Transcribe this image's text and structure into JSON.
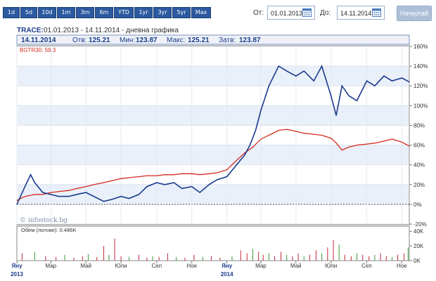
{
  "toolbar": {
    "ranges": [
      "1d",
      "5d",
      "10d",
      "1m",
      "3m",
      "6m",
      "YTD",
      "1yr",
      "3yr",
      "5yr",
      "Max"
    ],
    "from_label": "От:",
    "from_value": "01.01.2013",
    "to_label": "До:",
    "to_value": "14.11.2014",
    "draw_button": "Начертай"
  },
  "header": {
    "ticker": "TRACE:",
    "subtitle": "01.01.2013 - 14.11.2014 - дневна графика",
    "date": "14.11.2014",
    "open_label": "Отв:",
    "open": "125.21",
    "min_label": "Мин:",
    "min": "123.87",
    "max_label": "Макс:",
    "max": "125.21",
    "close_label": "Затв:",
    "close": "123.87"
  },
  "index_label": "BGTR30: 59.3",
  "watermark": "© infostock.bg",
  "volume_label": "Обем (лотове): 0.486K",
  "colors": {
    "price": "#1a3a8c",
    "index": "#d42a1c",
    "grid_band": "#eaf0fa",
    "volume_up": "#3a9a3a",
    "volume_down": "#c4283a"
  },
  "chart_data": [
    {
      "type": "line",
      "series": [
        {
          "name": "TRACE",
          "x": [
            "2013-01-01",
            "2013-01-15",
            "2013-01-25",
            "2013-02-01",
            "2013-02-15",
            "2013-03-01",
            "2013-03-15",
            "2013-04-01",
            "2013-04-15",
            "2013-05-01",
            "2013-05-15",
            "2013-06-01",
            "2013-06-15",
            "2013-07-01",
            "2013-07-15",
            "2013-08-01",
            "2013-08-15",
            "2013-09-01",
            "2013-09-15",
            "2013-10-01",
            "2013-10-15",
            "2013-11-01",
            "2013-11-15",
            "2013-12-01",
            "2013-12-15",
            "2014-01-01",
            "2014-01-15",
            "2014-02-01",
            "2014-02-10",
            "2014-02-20",
            "2014-03-01",
            "2014-03-15",
            "2014-04-01",
            "2014-04-15",
            "2014-05-01",
            "2014-05-15",
            "2014-06-01",
            "2014-06-15",
            "2014-07-01",
            "2014-07-10",
            "2014-07-20",
            "2014-08-01",
            "2014-08-15",
            "2014-09-01",
            "2014-09-15",
            "2014-10-01",
            "2014-10-15",
            "2014-11-01",
            "2014-11-14"
          ],
          "values": [
            0,
            18,
            30,
            22,
            12,
            10,
            8,
            8,
            10,
            12,
            8,
            3,
            5,
            8,
            6,
            10,
            18,
            22,
            20,
            22,
            16,
            18,
            12,
            20,
            25,
            28,
            38,
            50,
            60,
            75,
            95,
            120,
            140,
            135,
            130,
            135,
            125,
            140,
            110,
            90,
            120,
            110,
            105,
            125,
            120,
            130,
            125,
            128,
            124
          ]
        },
        {
          "name": "BGTR30",
          "x": [
            "2013-01-01",
            "2013-01-15",
            "2013-02-01",
            "2013-02-15",
            "2013-03-01",
            "2013-03-15",
            "2013-04-01",
            "2013-04-15",
            "2013-05-01",
            "2013-05-15",
            "2013-06-01",
            "2013-06-15",
            "2013-07-01",
            "2013-07-15",
            "2013-08-01",
            "2013-08-15",
            "2013-09-01",
            "2013-09-15",
            "2013-10-01",
            "2013-10-15",
            "2013-11-01",
            "2013-11-15",
            "2013-12-01",
            "2013-12-15",
            "2014-01-01",
            "2014-01-15",
            "2014-02-01",
            "2014-02-15",
            "2014-03-01",
            "2014-03-15",
            "2014-04-01",
            "2014-04-15",
            "2014-05-01",
            "2014-05-15",
            "2014-06-01",
            "2014-06-15",
            "2014-07-01",
            "2014-07-10",
            "2014-07-20",
            "2014-08-01",
            "2014-08-15",
            "2014-09-01",
            "2014-09-15",
            "2014-10-01",
            "2014-10-15",
            "2014-11-01",
            "2014-11-14"
          ],
          "values": [
            4,
            8,
            10,
            10,
            12,
            13,
            14,
            16,
            18,
            20,
            22,
            24,
            26,
            27,
            28,
            29,
            29,
            30,
            30,
            31,
            31,
            30,
            31,
            32,
            35,
            43,
            52,
            58,
            66,
            70,
            75,
            76,
            74,
            72,
            71,
            70,
            67,
            62,
            55,
            58,
            60,
            61,
            62,
            64,
            66,
            63,
            59
          ]
        }
      ],
      "ylim": [
        -20,
        160
      ],
      "yticks": [
        "-20%",
        "0%",
        "20%",
        "40%",
        "60%",
        "80%",
        "100%",
        "120%",
        "140%",
        "160%"
      ],
      "xticks": [
        "Яну",
        "Мар",
        "Май",
        "Юли",
        "Сеп",
        "Ное",
        "Яну",
        "Мар",
        "Май",
        "Юли",
        "Сеп",
        "Ное"
      ],
      "xtick_years": [
        "2013",
        "2014"
      ],
      "grid": true
    },
    {
      "type": "bar",
      "yticks": [
        "0K",
        "20K",
        "40K"
      ],
      "ylim": [
        0,
        45
      ],
      "x": [
        "2013-01-10",
        "2013-02-01",
        "2013-02-20",
        "2013-03-10",
        "2013-03-25",
        "2013-04-10",
        "2013-04-25",
        "2013-05-05",
        "2013-05-20",
        "2013-06-01",
        "2013-06-10",
        "2013-06-20",
        "2013-07-01",
        "2013-07-15",
        "2013-08-01",
        "2013-08-15",
        "2013-08-25",
        "2013-09-05",
        "2013-09-20",
        "2013-10-05",
        "2013-10-20",
        "2013-11-05",
        "2013-11-20",
        "2013-12-05",
        "2013-12-20",
        "2014-01-10",
        "2014-01-25",
        "2014-02-05",
        "2014-02-15",
        "2014-02-25",
        "2014-03-05",
        "2014-03-15",
        "2014-03-25",
        "2014-04-05",
        "2014-04-15",
        "2014-04-25",
        "2014-05-05",
        "2014-05-15",
        "2014-05-25",
        "2014-06-05",
        "2014-06-15",
        "2014-06-25",
        "2014-07-05",
        "2014-07-15",
        "2014-07-25",
        "2014-08-05",
        "2014-08-15",
        "2014-08-25",
        "2014-09-05",
        "2014-09-15",
        "2014-09-25",
        "2014-10-05",
        "2014-10-15",
        "2014-10-25",
        "2014-11-05",
        "2014-11-12"
      ],
      "values": [
        10,
        12,
        6,
        5,
        8,
        4,
        6,
        9,
        5,
        20,
        8,
        30,
        6,
        5,
        8,
        4,
        6,
        5,
        10,
        5,
        4,
        8,
        5,
        6,
        4,
        6,
        14,
        10,
        16,
        12,
        8,
        10,
        6,
        12,
        8,
        6,
        10,
        6,
        8,
        14,
        10,
        18,
        28,
        22,
        8,
        6,
        10,
        8,
        6,
        8,
        10,
        6,
        5,
        8,
        10,
        18
      ]
    }
  ]
}
